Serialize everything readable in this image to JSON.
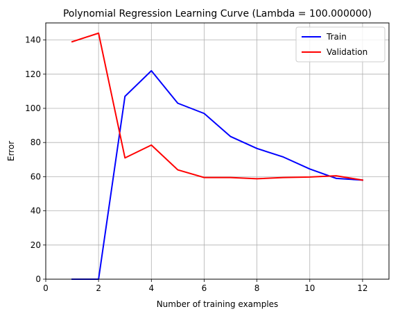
{
  "chart_data": {
    "type": "line",
    "title": "Polynomial Regression Learning Curve (Lambda = 100.000000)",
    "xlabel": "Number of training examples",
    "ylabel": "Error",
    "xlim": [
      0,
      13
    ],
    "ylim": [
      0,
      150
    ],
    "xticks": [
      0,
      2,
      4,
      6,
      8,
      10,
      12
    ],
    "yticks": [
      0,
      20,
      40,
      60,
      80,
      100,
      120,
      140
    ],
    "grid": true,
    "legend_position": "top-right",
    "x": [
      1,
      2,
      3,
      4,
      5,
      6,
      7,
      8,
      9,
      10,
      11,
      12
    ],
    "series": [
      {
        "name": "Train",
        "color": "#0000ff",
        "values": [
          0,
          0,
          107,
          122,
          103,
          97,
          83.5,
          76.5,
          71.5,
          64.5,
          59,
          58
        ]
      },
      {
        "name": "Validation",
        "color": "#ff0000",
        "values": [
          139,
          144,
          71,
          78.5,
          64,
          59.5,
          59.5,
          58.8,
          59.5,
          59.8,
          60.5,
          58
        ]
      }
    ]
  }
}
